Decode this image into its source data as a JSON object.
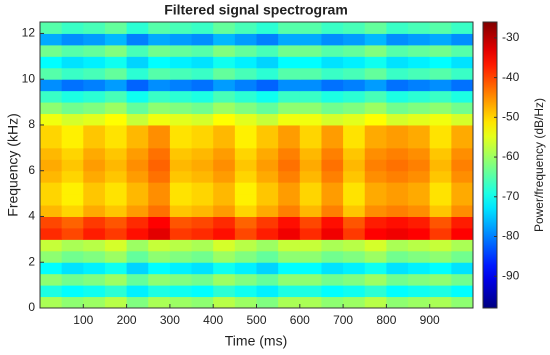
{
  "chart_data": {
    "type": "heatmap",
    "title": "Filtered signal spectrogram",
    "xlabel": "Time (ms)",
    "ylabel": "Frequency (kHz)",
    "colorbar_label": "Power/frequency (dB/Hz)",
    "colormap": "jet",
    "xlim": [
      0,
      1000
    ],
    "xticks": [
      100,
      200,
      300,
      400,
      500,
      600,
      700,
      800,
      900
    ],
    "ylim": [
      0,
      12.5
    ],
    "yticks": [
      0,
      2,
      4,
      6,
      8,
      10,
      12
    ],
    "clim": [
      -98,
      -26
    ],
    "cticks": [
      -90,
      -80,
      -70,
      -60,
      -50,
      -40,
      -30
    ],
    "xbins": [
      0,
      50,
      100,
      150,
      200,
      250,
      300,
      350,
      400,
      450,
      500,
      550,
      600,
      650,
      700,
      750,
      800,
      850,
      900,
      950,
      1000
    ],
    "ybins": [
      0,
      0.5,
      1,
      1.5,
      2,
      2.5,
      3,
      3.5,
      4,
      4.5,
      5,
      5.5,
      6,
      6.5,
      7,
      7.5,
      8,
      8.5,
      9,
      9.5,
      10,
      10.5,
      11,
      11.5,
      12,
      12.5
    ],
    "z": [
      [
        -59,
        -61,
        -60,
        -58,
        -62,
        -59,
        -60,
        -61,
        -58,
        -60,
        -62,
        -59,
        -59,
        -61,
        -60,
        -58,
        -61,
        -60,
        -59,
        -61
      ],
      [
        -69,
        -71,
        -70,
        -68,
        -72,
        -69,
        -70,
        -71,
        -68,
        -70,
        -72,
        -69,
        -69,
        -71,
        -70,
        -68,
        -71,
        -70,
        -69,
        -71
      ],
      [
        -61,
        -63,
        -62,
        -60,
        -64,
        -61,
        -62,
        -63,
        -60,
        -62,
        -64,
        -61,
        -61,
        -63,
        -62,
        -60,
        -63,
        -62,
        -61,
        -63
      ],
      [
        -71,
        -73,
        -72,
        -70,
        -74,
        -71,
        -72,
        -73,
        -70,
        -72,
        -74,
        -71,
        -71,
        -73,
        -72,
        -70,
        -73,
        -72,
        -71,
        -73
      ],
      [
        -61,
        -63,
        -62,
        -60,
        -64,
        -61,
        -62,
        -63,
        -60,
        -62,
        -64,
        -61,
        -61,
        -63,
        -62,
        -60,
        -63,
        -62,
        -61,
        -63
      ],
      [
        -57,
        -59,
        -58,
        -56,
        -60,
        -57,
        -58,
        -59,
        -56,
        -58,
        -60,
        -57,
        -57,
        -59,
        -58,
        -56,
        -59,
        -58,
        -57,
        -59
      ],
      [
        -38,
        -40,
        -37,
        -39,
        -36,
        -33,
        -39,
        -38,
        -36,
        -40,
        -37,
        -34,
        -38,
        -34,
        -39,
        -35,
        -34,
        -35,
        -39,
        -35
      ],
      [
        -40,
        -42,
        -39,
        -41,
        -38,
        -35,
        -41,
        -40,
        -38,
        -42,
        -39,
        -36,
        -40,
        -36,
        -41,
        -37,
        -36,
        -37,
        -41,
        -37
      ],
      [
        -48,
        -50,
        -47,
        -49,
        -46,
        -43,
        -49,
        -48,
        -46,
        -50,
        -47,
        -44,
        -48,
        -44,
        -49,
        -45,
        -44,
        -45,
        -49,
        -45
      ],
      [
        -50,
        -52,
        -49,
        -51,
        -48,
        -45,
        -51,
        -50,
        -48,
        -52,
        -49,
        -46,
        -50,
        -46,
        -51,
        -47,
        -46,
        -47,
        -51,
        -47
      ],
      [
        -50,
        -52,
        -49,
        -51,
        -48,
        -45,
        -51,
        -50,
        -48,
        -52,
        -49,
        -46,
        -50,
        -46,
        -51,
        -47,
        -46,
        -47,
        -51,
        -47
      ],
      [
        -48,
        -50,
        -47,
        -49,
        -46,
        -43,
        -49,
        -48,
        -46,
        -50,
        -47,
        -44,
        -48,
        -44,
        -49,
        -45,
        -44,
        -45,
        -49,
        -45
      ],
      [
        -47,
        -49,
        -46,
        -48,
        -45,
        -42,
        -48,
        -47,
        -45,
        -49,
        -46,
        -43,
        -47,
        -43,
        -48,
        -44,
        -43,
        -44,
        -48,
        -44
      ],
      [
        -48,
        -50,
        -47,
        -49,
        -46,
        -43,
        -49,
        -48,
        -46,
        -50,
        -47,
        -44,
        -48,
        -44,
        -49,
        -45,
        -44,
        -45,
        -49,
        -45
      ],
      [
        -50,
        -52,
        -49,
        -51,
        -48,
        -45,
        -51,
        -50,
        -48,
        -52,
        -49,
        -46,
        -50,
        -46,
        -51,
        -47,
        -46,
        -47,
        -51,
        -47
      ],
      [
        -50,
        -52,
        -49,
        -51,
        -48,
        -45,
        -51,
        -50,
        -48,
        -52,
        -49,
        -46,
        -50,
        -46,
        -51,
        -47,
        -46,
        -47,
        -51,
        -47
      ],
      [
        -54,
        -56,
        -55,
        -53,
        -57,
        -54,
        -55,
        -56,
        -53,
        -55,
        -57,
        -54,
        -54,
        -56,
        -55,
        -53,
        -56,
        -55,
        -54,
        -56
      ],
      [
        -61,
        -63,
        -62,
        -60,
        -64,
        -61,
        -62,
        -63,
        -60,
        -62,
        -64,
        -61,
        -61,
        -63,
        -62,
        -60,
        -63,
        -62,
        -61,
        -63
      ],
      [
        -67,
        -69,
        -68,
        -66,
        -70,
        -67,
        -68,
        -69,
        -66,
        -68,
        -70,
        -67,
        -67,
        -69,
        -68,
        -66,
        -69,
        -68,
        -67,
        -69
      ],
      [
        -79,
        -81,
        -80,
        -78,
        -82,
        -79,
        -80,
        -81,
        -78,
        -80,
        -82,
        -79,
        -79,
        -81,
        -80,
        -78,
        -81,
        -80,
        -79,
        -81
      ],
      [
        -65,
        -67,
        -66,
        -64,
        -68,
        -65,
        -66,
        -67,
        -64,
        -66,
        -68,
        -65,
        -65,
        -67,
        -66,
        -64,
        -67,
        -66,
        -65,
        -67
      ],
      [
        -71,
        -73,
        -72,
        -70,
        -74,
        -71,
        -72,
        -73,
        -70,
        -72,
        -74,
        -71,
        -71,
        -73,
        -72,
        -70,
        -73,
        -72,
        -71,
        -73
      ],
      [
        -63,
        -65,
        -64,
        -62,
        -66,
        -63,
        -64,
        -65,
        -62,
        -64,
        -66,
        -63,
        -63,
        -65,
        -64,
        -62,
        -65,
        -64,
        -63,
        -65
      ],
      [
        -77,
        -79,
        -78,
        -76,
        -80,
        -77,
        -78,
        -79,
        -76,
        -78,
        -80,
        -77,
        -77,
        -79,
        -78,
        -76,
        -79,
        -78,
        -77,
        -79
      ],
      [
        -65,
        -67,
        -66,
        -64,
        -68,
        -65,
        -66,
        -67,
        -64,
        -66,
        -68,
        -65,
        -65,
        -67,
        -66,
        -64,
        -67,
        -66,
        -65,
        -67
      ]
    ]
  }
}
